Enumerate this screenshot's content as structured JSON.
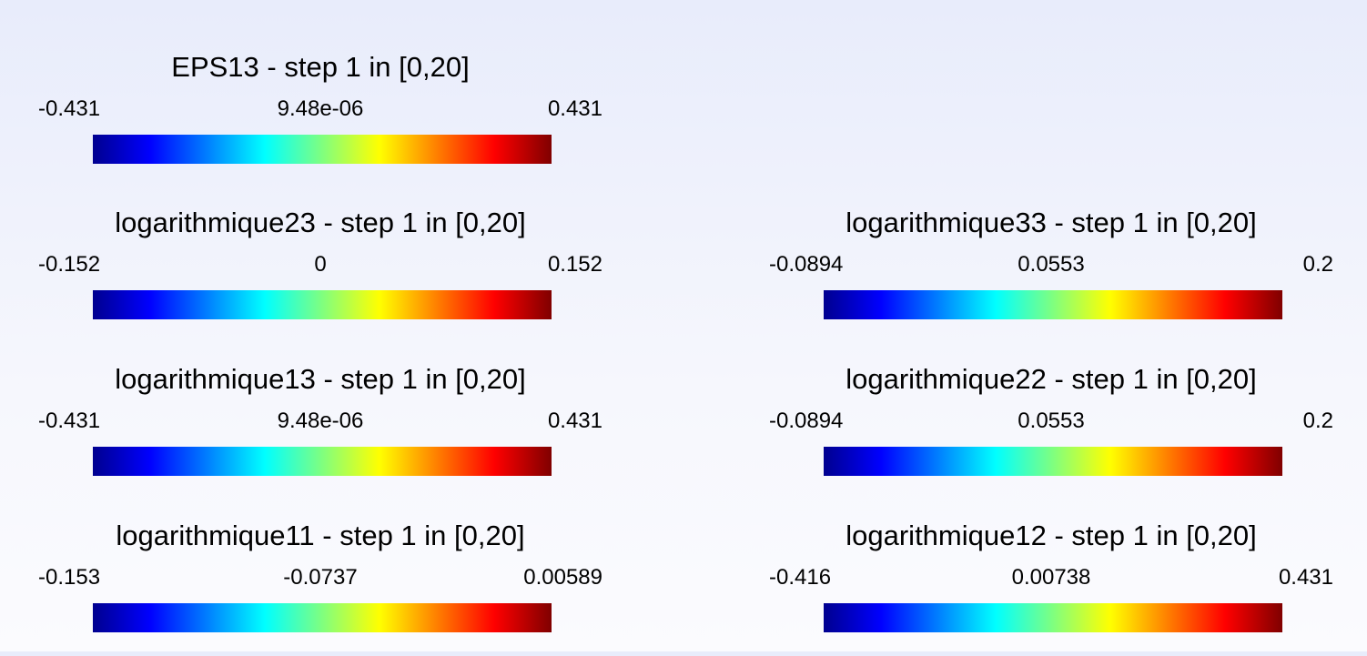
{
  "colormap": {
    "name": "jet",
    "stops": [
      "#00008f",
      "#0000ff",
      "#00ffff",
      "#ffff00",
      "#ff0000",
      "#800000"
    ]
  },
  "legends": [
    {
      "title": "EPS13 - step 1 in [0,20]",
      "min": "-0.431",
      "mid": "9.48e-06",
      "max": "0.431"
    },
    {
      "title": "logarithmique23 - step 1 in [0,20]",
      "min": "-0.152",
      "mid": "0",
      "max": "0.152"
    },
    {
      "title": "logarithmique33 - step 1 in [0,20]",
      "min": "-0.0894",
      "mid": "0.0553",
      "max": "0.2"
    },
    {
      "title": "logarithmique13 - step 1 in [0,20]",
      "min": "-0.431",
      "mid": "9.48e-06",
      "max": "0.431"
    },
    {
      "title": "logarithmique22 - step 1 in [0,20]",
      "min": "-0.0894",
      "mid": "0.0553",
      "max": "0.2"
    },
    {
      "title": "logarithmique11 - step 1 in [0,20]",
      "min": "-0.153",
      "mid": "-0.0737",
      "max": "0.00589"
    },
    {
      "title": "logarithmique12 - step 1 in [0,20]",
      "min": "-0.416",
      "mid": "0.00738",
      "max": "0.431"
    }
  ]
}
